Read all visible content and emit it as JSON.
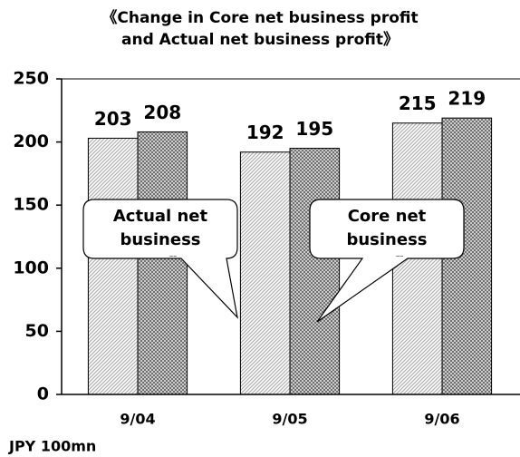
{
  "chart_data": {
    "type": "bar",
    "title": "《Change in Core net business profit and Actual net business profit》",
    "y_label": "JPY 100mn",
    "categories": [
      "9/04",
      "9/05",
      "9/06"
    ],
    "series": [
      {
        "name": "Actual net business profit",
        "color": "#b0b0b0",
        "values": [
          203,
          192,
          215
        ]
      },
      {
        "name": "Core net business profit",
        "color": "#707070",
        "values": [
          208,
          195,
          219
        ]
      }
    ],
    "ylim": [
      0,
      250
    ],
    "yticks": [
      0,
      50,
      100,
      150,
      200,
      250
    ]
  }
}
